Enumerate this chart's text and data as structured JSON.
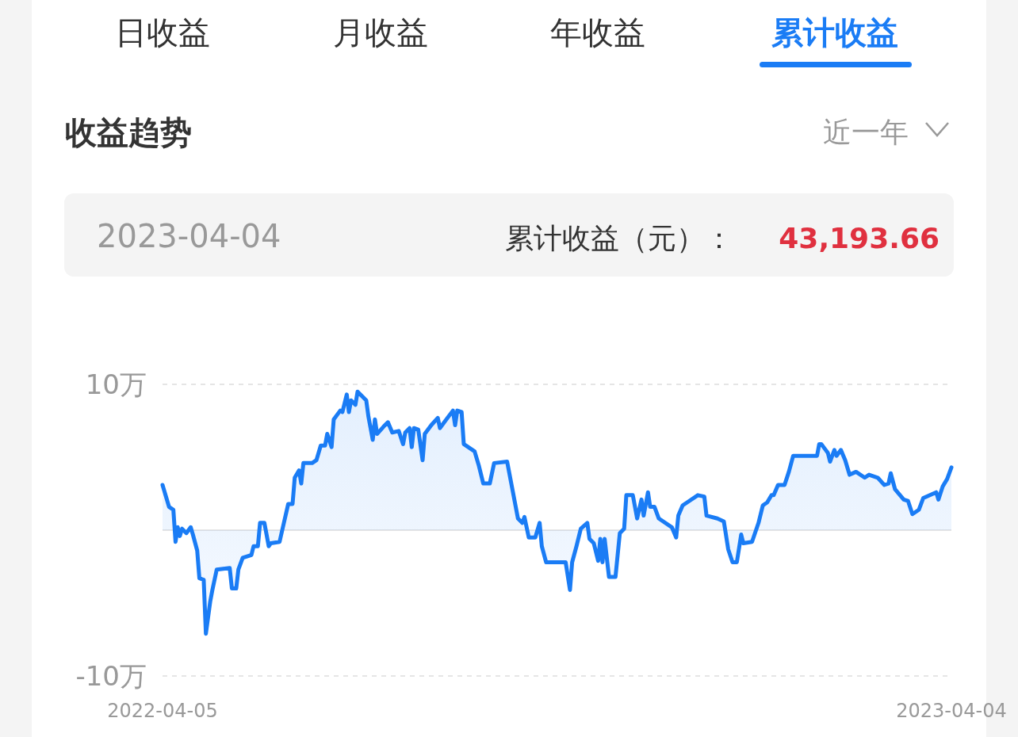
{
  "chart_data": {
    "type": "area",
    "title": "收益趋势",
    "annotations": [
      "日收益",
      "月收益",
      "年收益",
      "累计收益",
      "近一年",
      "2023-04-04",
      "累计收益（元）：",
      "43,193.66"
    ],
    "x": [
      "2022-04-05",
      "2022-04-08",
      "2022-04-10",
      "2022-04-11",
      "2022-04-12",
      "2022-04-13",
      "2022-04-14",
      "2022-04-16",
      "2022-04-18",
      "2022-04-19",
      "2022-04-21",
      "2022-04-22",
      "2022-04-24",
      "2022-04-25",
      "2022-04-27",
      "2022-04-28",
      "2022-04-30",
      "2022-05-06",
      "2022-05-07",
      "2022-05-09",
      "2022-05-10",
      "2022-05-12",
      "2022-05-16",
      "2022-05-17",
      "2022-05-19",
      "2022-05-20",
      "2022-05-22",
      "2022-05-24",
      "2022-05-25",
      "2022-05-29",
      "2022-05-31",
      "2022-06-02",
      "2022-06-04",
      "2022-06-05",
      "2022-06-07",
      "2022-06-08",
      "2022-06-09",
      "2022-06-13",
      "2022-06-15",
      "2022-06-17",
      "2022-06-19",
      "2022-06-20",
      "2022-06-22",
      "2022-06-23",
      "2022-06-26",
      "2022-06-27",
      "2022-06-29",
      "2022-06-30",
      "2022-07-01",
      "2022-07-03",
      "2022-07-04",
      "2022-07-06",
      "2022-07-08",
      "2022-07-09",
      "2022-07-11",
      "2022-07-12",
      "2022-07-13",
      "2022-07-16",
      "2022-07-18",
      "2022-07-20",
      "2022-07-23",
      "2022-07-25",
      "2022-07-26",
      "2022-07-28",
      "2022-07-29",
      "2022-07-30",
      "2022-08-01",
      "2022-08-03",
      "2022-08-04",
      "2022-08-07",
      "2022-08-10",
      "2022-08-11",
      "2022-08-13",
      "2022-08-17",
      "2022-08-18",
      "2022-08-19",
      "2022-08-21",
      "2022-08-22",
      "2022-08-27",
      "2022-08-29",
      "2022-08-31",
      "2022-09-03",
      "2022-09-05",
      "2022-09-11",
      "2022-09-16",
      "2022-09-18",
      "2022-09-19",
      "2022-09-21",
      "2022-09-24",
      "2022-09-26",
      "2022-09-27",
      "2022-09-29",
      "2022-10-08",
      "2022-10-10",
      "2022-10-11",
      "2022-10-13",
      "2022-10-15",
      "2022-10-18",
      "2022-10-19",
      "2022-10-21",
      "2022-10-23",
      "2022-10-24",
      "2022-10-25",
      "2022-10-26",
      "2022-10-28",
      "2022-10-31",
      "2022-11-02",
      "2022-11-04",
      "2022-11-05",
      "2022-11-08",
      "2022-11-10",
      "2022-11-12",
      "2022-11-13",
      "2022-11-15",
      "2022-11-16",
      "2022-11-18",
      "2022-11-20",
      "2022-11-26",
      "2022-11-28",
      "2022-11-29",
      "2022-12-01",
      "2022-12-04",
      "2022-12-08",
      "2022-12-11",
      "2022-12-12",
      "2022-12-17",
      "2022-12-20",
      "2022-12-22",
      "2022-12-24",
      "2022-12-26",
      "2022-12-28",
      "2022-12-29",
      "2023-01-02",
      "2023-01-05",
      "2023-01-07",
      "2023-01-09",
      "2023-01-11",
      "2023-01-12",
      "2023-01-14",
      "2023-01-17",
      "2023-01-19",
      "2023-01-21",
      "2023-02-01",
      "2023-02-02",
      "2023-02-03",
      "2023-02-04",
      "2023-02-06",
      "2023-02-07",
      "2023-02-09",
      "2023-02-10",
      "2023-02-12",
      "2023-02-14",
      "2023-02-16",
      "2023-02-19",
      "2023-02-23",
      "2023-02-25",
      "2023-03-01",
      "2023-03-04",
      "2023-03-06",
      "2023-03-07",
      "2023-03-09",
      "2023-03-13",
      "2023-03-15",
      "2023-03-17",
      "2023-03-20",
      "2023-03-22",
      "2023-03-28",
      "2023-03-29",
      "2023-03-31",
      "2023-04-02",
      "2023-04-04"
    ],
    "series": [
      {
        "color": "#1a7cf5",
        "values": [
          3.1,
          1.6,
          1.4,
          -0.8,
          0.2,
          -0.4,
          0.1,
          -0.2,
          0.2,
          -0.3,
          -1.4,
          -3.3,
          -3.4,
          -7.1,
          -4.9,
          -4.1,
          -2.7,
          -2.6,
          -4,
          -4,
          -2.7,
          -1.9,
          -1.7,
          -1.1,
          -1.1,
          0.5,
          0.5,
          -1.1,
          -0.9,
          -0.8,
          0.5,
          1.8,
          1.8,
          3.6,
          4.1,
          3.2,
          4.6,
          4.6,
          4.8,
          5.8,
          5.8,
          6.6,
          5.7,
          7.6,
          8.2,
          8.1,
          9.3,
          8.1,
          8.9,
          8.6,
          9.5,
          9.2,
          8.9,
          7.8,
          6.2,
          7.6,
          6.6,
          7.1,
          7.4,
          6.7,
          6.8,
          5.9,
          6.7,
          7,
          5.7,
          7,
          6.9,
          4.8,
          6.6,
          7.2,
          7.7,
          7,
          7.4,
          8.2,
          7.2,
          8.2,
          8.1,
          5.9,
          5.4,
          4.4,
          3.2,
          3.2,
          4.6,
          4.7,
          0.8,
          0.5,
          0.9,
          -0.5,
          -0.5,
          0.5,
          -1.1,
          -2.2,
          -2.2,
          -4.1,
          -2.2,
          -1.1,
          0.1,
          0.5,
          -0.6,
          -0.9,
          -2.1,
          -0.6,
          -2.2,
          -0.6,
          -3.2,
          -3.2,
          -0.2,
          0.1,
          2.4,
          2.4,
          0.8,
          2.1,
          1,
          2.6,
          1.6,
          1.6,
          0.8,
          0.2,
          -0.5,
          1,
          1.7,
          2,
          2.4,
          2.3,
          1,
          0.8,
          0.6,
          -1.3,
          -2.2,
          -2.2,
          -0.3,
          -0.9,
          -0.8,
          0.5,
          1.7,
          1.9,
          2.4,
          2.4,
          3.1,
          3.1,
          4,
          5.1,
          5.1,
          5.9,
          5.9,
          5.7,
          5.3,
          4.7,
          5.5,
          5.1,
          5.5,
          4.8,
          3.8,
          4,
          3.6,
          3.8,
          3.6,
          3.1,
          3.2,
          3.9,
          2.8,
          2.1,
          2,
          1.1,
          1.4,
          2.2,
          2.6,
          2.1,
          3,
          3.5,
          4.3
        ]
      }
    ],
    "xlim": [
      "2022-04-05",
      "2023-04-04"
    ],
    "xticks": [
      "2022-04-05",
      "2023-04-04"
    ],
    "ylim": [
      -10,
      10
    ],
    "yticks": [
      {
        "value": 10,
        "label": "10万"
      },
      {
        "value": -10,
        "label": "-10万"
      }
    ],
    "ref_lines": [
      {
        "axis": "y",
        "value": 0,
        "color": "#dddddd"
      }
    ],
    "grid": "y",
    "line_style": "solid"
  }
}
